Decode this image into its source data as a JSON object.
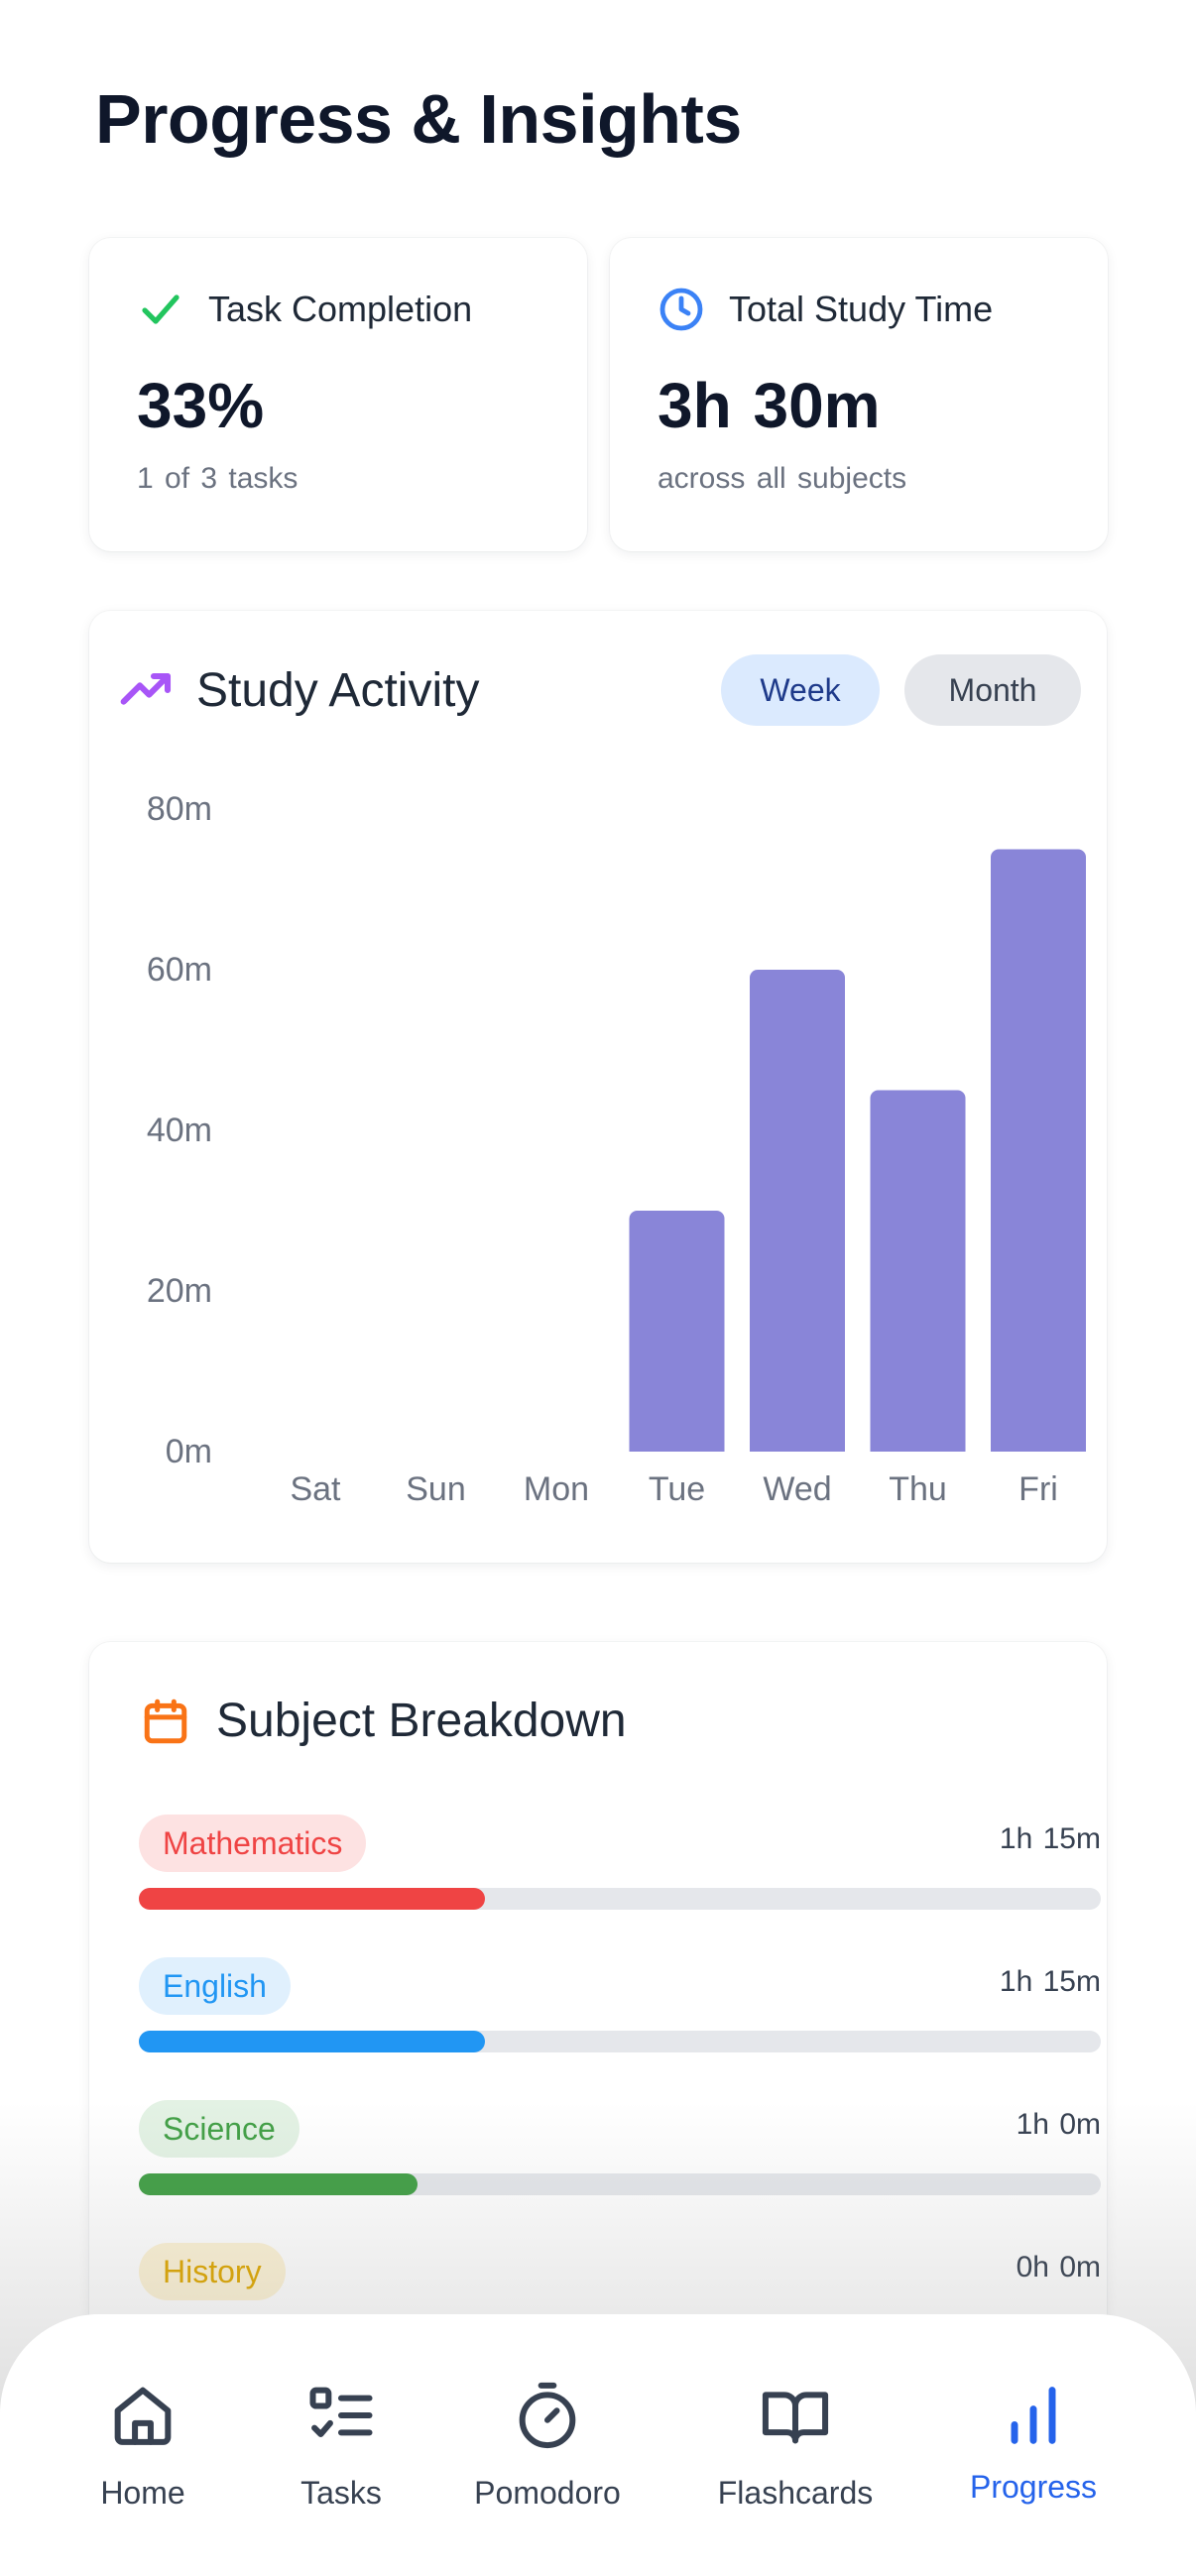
{
  "header": {
    "title": "Progress & Insights"
  },
  "stats": {
    "task_completion": {
      "label": "Task Completion",
      "value": "33%",
      "sub": "1 of 3 tasks",
      "icon": "check-icon",
      "color": "#22c55e"
    },
    "study_time": {
      "label": "Total Study Time",
      "value": "3h 30m",
      "sub": "across all subjects",
      "icon": "clock-icon",
      "color": "#3b82f6"
    }
  },
  "activity": {
    "title": "Study Activity",
    "icon": "trending-up-icon",
    "icon_color": "#a855f7",
    "toggle": {
      "week": "Week",
      "month": "Month",
      "selected": "week"
    }
  },
  "chart_data": {
    "type": "bar",
    "categories": [
      "Sat",
      "Sun",
      "Mon",
      "Tue",
      "Wed",
      "Thu",
      "Fri"
    ],
    "values": [
      0,
      0,
      0,
      30,
      60,
      45,
      75
    ],
    "unit": "m",
    "ylim": [
      0,
      80
    ],
    "yticks": [
      0,
      20,
      40,
      60,
      80
    ],
    "ytick_labels": [
      "0m",
      "20m",
      "40m",
      "60m",
      "80m"
    ],
    "bar_color": "#8985d8",
    "grid": false
  },
  "subjects": {
    "title": "Subject Breakdown",
    "icon": "calendar-icon",
    "icon_color": "#f97316",
    "items": [
      {
        "name": "Mathematics",
        "time": "1h 15m",
        "fraction": 0.36,
        "color": "#ef4444",
        "pill_bg": "#fde2e2"
      },
      {
        "name": "English",
        "time": "1h 15m",
        "fraction": 0.36,
        "color": "#2196f3",
        "pill_bg": "#e0f0fd"
      },
      {
        "name": "Science",
        "time": "1h 0m",
        "fraction": 0.29,
        "color": "#43a047",
        "pill_bg": "#e3f2e4"
      },
      {
        "name": "History",
        "time": "0h 0m",
        "fraction": 0,
        "color": "#e0a800",
        "pill_bg": "#fdf3d6"
      }
    ]
  },
  "nav": {
    "items": [
      {
        "label": "Home",
        "icon": "home-icon"
      },
      {
        "label": "Tasks",
        "icon": "tasks-icon"
      },
      {
        "label": "Pomodoro",
        "icon": "stopwatch-icon"
      },
      {
        "label": "Flashcards",
        "icon": "book-open-icon"
      },
      {
        "label": "Progress",
        "icon": "bar-chart-icon",
        "active": true
      }
    ],
    "active_color": "#2563eb"
  }
}
